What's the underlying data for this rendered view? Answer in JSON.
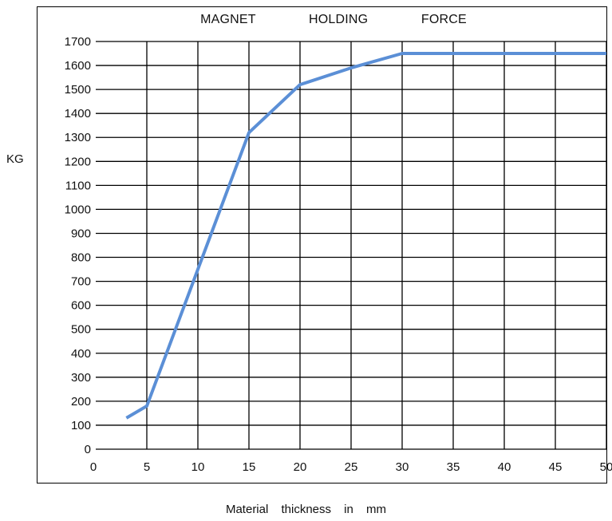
{
  "chart_data": {
    "type": "line",
    "title": "MAGNET    HOLDING    FORCE",
    "xlabel": "Material    thickness    in    mm",
    "ylabel": "KG",
    "xlim": [
      0,
      50
    ],
    "ylim": [
      0,
      1700
    ],
    "x_ticks": [
      0,
      5,
      10,
      15,
      20,
      25,
      30,
      35,
      40,
      45,
      50
    ],
    "y_ticks": [
      0,
      100,
      200,
      300,
      400,
      500,
      600,
      700,
      800,
      900,
      1000,
      1100,
      1200,
      1300,
      1400,
      1500,
      1600,
      1700
    ],
    "grid": true,
    "series": [
      {
        "color": "#5b8fd6",
        "x": [
          3,
          5,
          15,
          20,
          25,
          30,
          50
        ],
        "y": [
          130,
          180,
          1320,
          1520,
          1590,
          1650,
          1650
        ]
      }
    ]
  }
}
